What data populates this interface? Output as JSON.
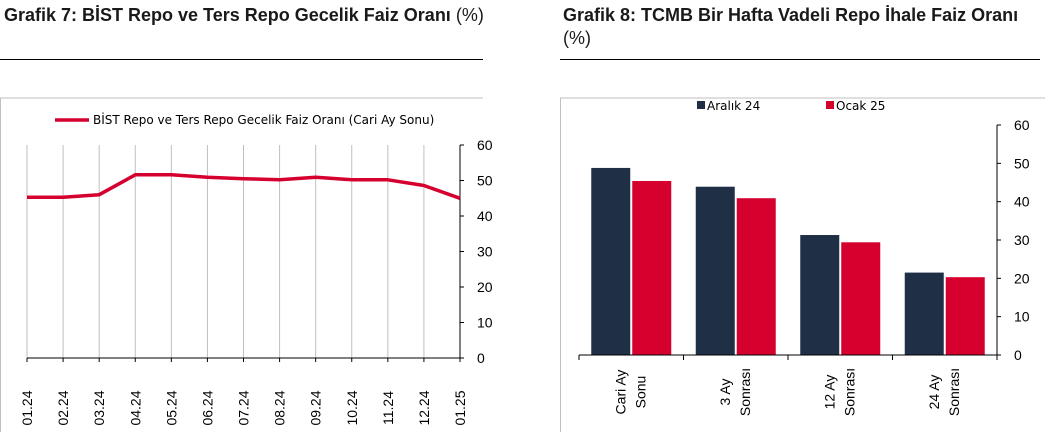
{
  "left": {
    "title_main": "Grafik 7:  BİST Repo ve Ters Repo Gecelik Faiz Oranı",
    "title_unit": "(%)"
  },
  "right": {
    "title_main": "Grafik 8: TCMB Bir Hafta Vadeli Repo İhale Faiz Oranı",
    "title_unit": "(%)"
  },
  "colors": {
    "accent": "#d6002f",
    "navy": "#1f3046",
    "axis": "#000000",
    "frame": "#bfbfbf"
  },
  "chart_data": [
    {
      "type": "line",
      "title": "Grafik 7:  BİST Repo ve Ters Repo Gecelik Faiz Oranı (%)",
      "categories": [
        "01.24",
        "02.24",
        "03.24",
        "04.24",
        "05.24",
        "06.24",
        "07.24",
        "08.24",
        "09.24",
        "10.24",
        "11.24",
        "12.24",
        "01.25"
      ],
      "series": [
        {
          "name": "BİST Repo ve Ters Repo Gecelik Faiz Oranı (Cari Ay Sonu)",
          "values": [
            45.3,
            45.3,
            46.0,
            51.6,
            51.6,
            50.9,
            50.5,
            50.2,
            50.9,
            50.2,
            50.2,
            48.6,
            45.0
          ]
        }
      ],
      "ylim": [
        0,
        60
      ],
      "yticks": [
        0,
        10,
        20,
        30,
        40,
        50,
        60
      ],
      "legend_position": "top"
    },
    {
      "type": "bar",
      "title": "Grafik 8: TCMB Bir Hafta Vadeli Repo İhale Faiz Oranı (%)",
      "categories": [
        [
          "Cari Ay",
          "Sonu"
        ],
        [
          "3 Ay",
          "Sonrası"
        ],
        [
          "12 Ay",
          "Sonrası"
        ],
        [
          "24 Ay",
          "Sonrası"
        ]
      ],
      "series": [
        {
          "name": "Aralık 24",
          "values": [
            48.8,
            43.9,
            31.3,
            21.5
          ]
        },
        {
          "name": "Ocak 25",
          "values": [
            45.4,
            40.9,
            29.4,
            20.3
          ]
        }
      ],
      "ylim": [
        0,
        60
      ],
      "yticks": [
        0,
        10,
        20,
        30,
        40,
        50,
        60
      ],
      "legend_position": "top"
    }
  ]
}
